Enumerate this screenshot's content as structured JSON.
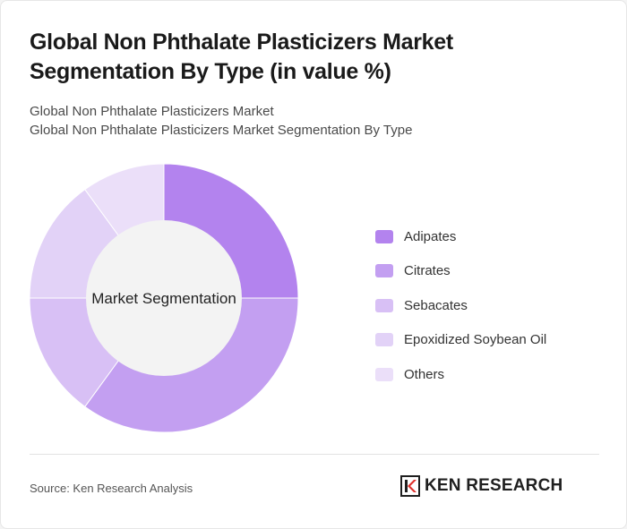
{
  "header": {
    "title": "Global Non Phthalate Plasticizers Market Segmentation By Type (in value %)",
    "subtitle_line1": "Global Non Phthalate Plasticizers Market",
    "subtitle_line2": "Global Non Phthalate Plasticizers Market Segmentation By Type"
  },
  "chart_data": {
    "type": "pie",
    "variant": "donut",
    "center_label": "Market Segmentation",
    "categories": [
      "Adipates",
      "Citrates",
      "Sebacates",
      "Epoxidized Soybean Oil",
      "Others"
    ],
    "values": [
      25,
      35,
      15,
      15,
      10
    ],
    "colors": [
      "#b383ee",
      "#c39ff1",
      "#d8c0f5",
      "#e2d2f7",
      "#ebdff9"
    ],
    "legend_position": "right",
    "start_angle": "12 o'clock, clockwise"
  },
  "footer": {
    "source": "Source: Ken Research Analysis",
    "logo_text": "KEN RESEARCH",
    "logo_mark": "K"
  },
  "colors": {
    "donut_hole": "#f3f3f3",
    "title_text": "#1a1a1a"
  }
}
